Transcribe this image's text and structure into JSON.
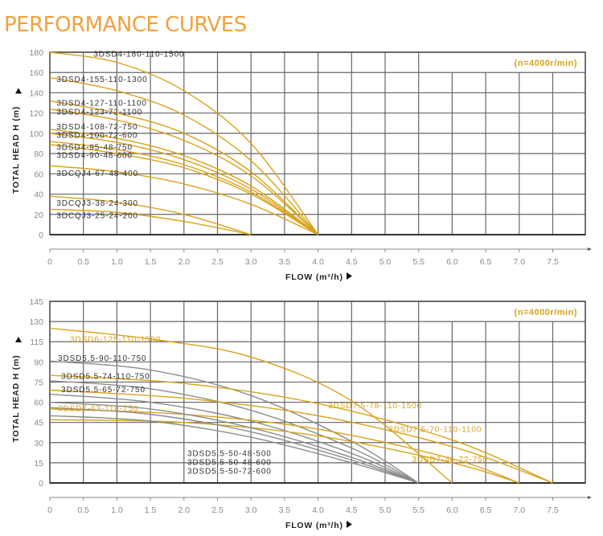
{
  "page": {
    "title": "PERFORMANCE CURVES"
  },
  "colors": {
    "title": "#f2a03d",
    "gold": "#d9a21a",
    "grey": "#8c8c8c",
    "grid": "#555555",
    "label_dark": "#333333"
  },
  "chart_data": [
    {
      "type": "line",
      "title": "",
      "annotation": "(n=4000r/min)",
      "xlabel": "FLOW (m³/h)",
      "ylabel": "TOTAL HEAD H (m)",
      "xlim": [
        0,
        8
      ],
      "ylim": [
        0,
        180
      ],
      "x_ticks": [
        0,
        0.5,
        1.0,
        1.5,
        2.0,
        2.5,
        3.0,
        3.5,
        4.0,
        4.5,
        5.0,
        5.5,
        6.0,
        6.5,
        7.0,
        7.5
      ],
      "x_tick_labels": [
        "0",
        "0.5",
        "1.0",
        "1.5",
        "2.0",
        "2.5",
        "3.0",
        "3.5",
        "4.0",
        "4.5",
        "5.0",
        "5.5",
        "6.0",
        "6.5",
        "7.0",
        "7.5"
      ],
      "y_ticks": [
        0,
        20,
        40,
        60,
        80,
        100,
        120,
        140,
        160,
        180
      ],
      "y_tick_labels": [
        "0",
        "20",
        "40",
        "60",
        "80",
        "100",
        "120",
        "140",
        "160",
        "180"
      ],
      "grid": true,
      "series": [
        {
          "name": "3DSD4-180-110-1500",
          "color": "gold",
          "label_color": "dark",
          "x": [
            0,
            1.0,
            2.0,
            3.0,
            4.0
          ],
          "y": [
            180,
            170,
            142,
            90,
            0
          ]
        },
        {
          "name": "3DSD4-155-110-1300",
          "color": "gold",
          "label_color": "dark",
          "x": [
            0,
            1.0,
            2.0,
            3.0,
            4.0
          ],
          "y": [
            155,
            142,
            118,
            73,
            0
          ]
        },
        {
          "name": "3DSD4-127-110-1100",
          "color": "gold",
          "label_color": "dark",
          "x": [
            0,
            1.0,
            2.0,
            3.0,
            4.0
          ],
          "y": [
            132,
            120,
            100,
            62,
            0
          ]
        },
        {
          "name": "3DSD4-123-72-1100",
          "color": "gold",
          "label_color": "dark",
          "x": [
            0,
            1.0,
            2.0,
            3.0,
            4.0
          ],
          "y": [
            124,
            113,
            93,
            58,
            0
          ]
        },
        {
          "name": "3DSD4-108-72-750",
          "color": "gold",
          "label_color": "dark",
          "x": [
            0,
            1.0,
            2.0,
            3.0,
            4.0
          ],
          "y": [
            104,
            95,
            78,
            48,
            0
          ]
        },
        {
          "name": "3DSD4-100-72-600",
          "color": "gold",
          "label_color": "dark",
          "x": [
            0,
            1.0,
            2.0,
            3.0,
            4.0
          ],
          "y": [
            100,
            91,
            74,
            45,
            0
          ]
        },
        {
          "name": "3DSD4-95-48-750",
          "color": "gold",
          "label_color": "dark",
          "x": [
            0,
            1.0,
            2.0,
            3.0,
            4.0
          ],
          "y": [
            92,
            84,
            69,
            42,
            0
          ]
        },
        {
          "name": "3DSD4-90-48-600",
          "color": "gold",
          "label_color": "dark",
          "x": [
            0,
            1.0,
            2.0,
            3.0,
            4.0
          ],
          "y": [
            89,
            80,
            66,
            40,
            0
          ]
        },
        {
          "name": "3DCQJ4-67-48-400",
          "color": "gold",
          "label_color": "dark",
          "x": [
            0,
            1.0,
            2.0,
            3.0,
            4.0
          ],
          "y": [
            68,
            62,
            50,
            30,
            0
          ]
        },
        {
          "name": "3DCQJ3-38-24-300",
          "color": "gold",
          "label_color": "dark",
          "x": [
            0,
            1.0,
            2.0,
            3.0
          ],
          "y": [
            38,
            32,
            20,
            0
          ]
        },
        {
          "name": "3DCQJ3-25-24-200",
          "color": "gold",
          "label_color": "dark",
          "x": [
            0,
            1.0,
            2.0,
            3.0
          ],
          "y": [
            25,
            22,
            13,
            0
          ]
        }
      ]
    },
    {
      "type": "line",
      "title": "",
      "annotation": "(n=4000r/min)",
      "xlabel": "FLOW (m³/h)",
      "ylabel": "TOTAL HEAD H (m)",
      "xlim": [
        0,
        8
      ],
      "ylim": [
        0,
        145
      ],
      "x_ticks": [
        0,
        0.5,
        1.0,
        1.5,
        2.0,
        2.5,
        3.0,
        3.5,
        4.0,
        4.5,
        5.0,
        5.5,
        6.0,
        6.5,
        7.0,
        7.5
      ],
      "x_tick_labels": [
        "0",
        "0.5",
        "1.0",
        "1.5",
        "2.0",
        "2.5",
        "3.0",
        "3.5",
        "4.0",
        "4.5",
        "5.0",
        "5.5",
        "6.0",
        "6.5",
        "7.0",
        "7.5"
      ],
      "y_ticks": [
        0,
        15,
        30,
        45,
        60,
        75,
        90,
        115,
        130,
        145
      ],
      "y_tick_labels": [
        "0",
        "15",
        "30",
        "45",
        "60",
        "75",
        "90",
        "115",
        "130",
        "145"
      ],
      "grid": true,
      "series": [
        {
          "name": "3DSD6-125-110-1500",
          "color": "gold",
          "label_color": "gold",
          "x": [
            0,
            1.5,
            3.0,
            4.5,
            6.0
          ],
          "y": [
            125,
            117,
            96,
            61,
            0
          ]
        },
        {
          "name": "3DSD5.5-90-110-750",
          "color": "grey",
          "label_color": "dark",
          "x": [
            0,
            1.5,
            3.0,
            4.5,
            5.5
          ],
          "y": [
            91,
            84,
            65,
            31,
            0
          ]
        },
        {
          "name": "3DSD5.5-74-110-750",
          "color": "grey",
          "label_color": "dark",
          "x": [
            0,
            1.5,
            3.0,
            4.5,
            5.5
          ],
          "y": [
            76,
            70,
            54,
            26,
            0
          ]
        },
        {
          "name": "3DSD5.5-65-72-750",
          "color": "grey",
          "label_color": "dark",
          "x": [
            0,
            1.5,
            3.0,
            4.5,
            5.5
          ],
          "y": [
            66,
            60,
            46,
            22,
            0
          ]
        },
        {
          "name": "3DSD7.5-78-110-1500",
          "color": "gold",
          "label_color": "gold",
          "x": [
            0,
            2.0,
            4.0,
            6.0,
            7.5
          ],
          "y": [
            80,
            74,
            59,
            32,
            0
          ]
        },
        {
          "name": "3DSD7.5-70-110-1100",
          "color": "gold",
          "label_color": "gold",
          "x": [
            0,
            2.0,
            4.0,
            6.0,
            7.5
          ],
          "y": [
            69,
            63,
            50,
            27,
            0
          ]
        },
        {
          "name": "3DSD7-63-110-750",
          "color": "gold",
          "label_color": "gold",
          "x": [
            0,
            2.0,
            4.0,
            6.0,
            7.0
          ],
          "y": [
            55,
            51,
            40,
            18,
            0
          ]
        },
        {
          "name": "3DSD7-46-72-750",
          "color": "gold",
          "label_color": "gold",
          "x": [
            0,
            2.0,
            4.0,
            6.0,
            7.0
          ],
          "y": [
            47,
            45,
            35,
            15,
            0
          ]
        },
        {
          "name": "3DSD5.5-50-48-500",
          "color": "grey",
          "label_color": "dark",
          "x": [
            0,
            1.5,
            3.0,
            4.5,
            5.5
          ],
          "y": [
            60,
            55,
            41,
            19,
            0
          ]
        },
        {
          "name": "3DSD5.5-50-48-600",
          "color": "grey",
          "label_color": "dark",
          "x": [
            0,
            1.5,
            3.0,
            4.5,
            5.5
          ],
          "y": [
            56,
            51,
            38,
            17,
            0
          ]
        },
        {
          "name": "3DSD5.5-50-72-600",
          "color": "grey",
          "label_color": "dark",
          "x": [
            0,
            1.5,
            3.0,
            4.5,
            5.5
          ],
          "y": [
            50,
            46,
            34,
            15,
            0
          ]
        }
      ]
    }
  ]
}
